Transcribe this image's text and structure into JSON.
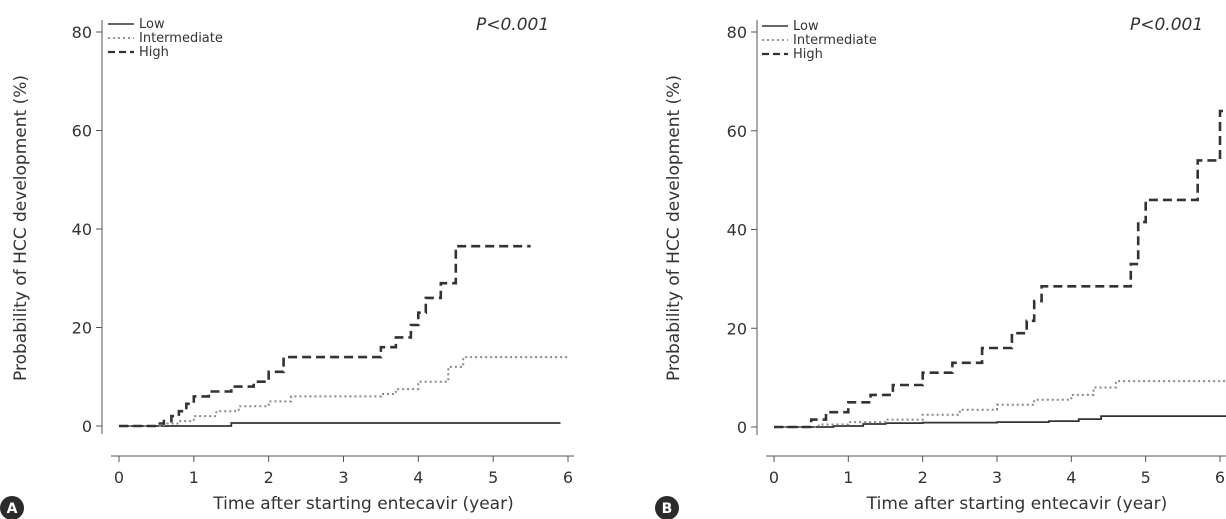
{
  "figure": {
    "panels": [
      "A",
      "B"
    ]
  },
  "chart_data": [
    {
      "type": "line",
      "panel_label": "A",
      "xlabel": "Time after starting entecavir (year)",
      "ylabel": "Probability of HCC development (%)",
      "xlim": [
        0,
        6
      ],
      "ylim": [
        0,
        80
      ],
      "xticks": [
        "0",
        "1",
        "2",
        "3",
        "4",
        "5",
        "6"
      ],
      "yticks": [
        "0",
        "20",
        "40",
        "60",
        "80"
      ],
      "annotation": "P<0.001",
      "legend": {
        "position": "top-left"
      },
      "series": [
        {
          "name": "Low",
          "style": "solid",
          "color": "#333333",
          "x": [
            0,
            1.5,
            5.9
          ],
          "y": [
            0,
            0.6,
            0.6
          ]
        },
        {
          "name": "Intermediate",
          "style": "dotted",
          "color": "#888888",
          "x": [
            0,
            0.6,
            0.8,
            1.0,
            1.3,
            1.6,
            2.0,
            2.3,
            3.5,
            3.7,
            4.0,
            4.4,
            4.6,
            6.0
          ],
          "y": [
            0,
            0.5,
            1.0,
            2.0,
            3.0,
            4.0,
            5.0,
            6.0,
            6.5,
            7.5,
            9.0,
            12.0,
            14.0,
            14.0
          ]
        },
        {
          "name": "High",
          "style": "dashed",
          "color": "#333333",
          "x": [
            0,
            0.5,
            0.6,
            0.7,
            0.8,
            0.9,
            1.0,
            1.2,
            1.5,
            1.8,
            2.0,
            2.2,
            3.2,
            3.5,
            3.7,
            3.9,
            4.0,
            4.1,
            4.3,
            4.5,
            5.5
          ],
          "y": [
            0,
            0.5,
            1.0,
            2.0,
            3.0,
            4.5,
            6.0,
            7.0,
            8.0,
            9.0,
            11.0,
            14.0,
            14.0,
            16.0,
            18.0,
            20.5,
            23.0,
            26.0,
            29.0,
            36.5,
            36.5
          ]
        }
      ]
    },
    {
      "type": "line",
      "panel_label": "B",
      "xlabel": "Time after starting entecavir (year)",
      "ylabel": "Probability of HCC development (%)",
      "xlim": [
        0,
        6
      ],
      "ylim": [
        0,
        80
      ],
      "xticks": [
        "0",
        "1",
        "2",
        "3",
        "4",
        "5",
        "6"
      ],
      "yticks": [
        "0",
        "20",
        "40",
        "60",
        "80"
      ],
      "annotation": "P<0.001",
      "legend": {
        "position": "top-left"
      },
      "series": [
        {
          "name": "Low",
          "style": "solid",
          "color": "#333333",
          "x": [
            0,
            0.8,
            1.2,
            1.5,
            2.0,
            3.0,
            3.7,
            4.1,
            4.4,
            6.2
          ],
          "y": [
            0,
            0.2,
            0.6,
            0.8,
            0.9,
            1.0,
            1.2,
            1.6,
            2.2,
            2.2
          ]
        },
        {
          "name": "Intermediate",
          "style": "dotted",
          "color": "#888888",
          "x": [
            0,
            0.6,
            1.0,
            1.5,
            2.0,
            2.5,
            3.0,
            3.5,
            4.0,
            4.3,
            4.6,
            6.2
          ],
          "y": [
            0,
            0.5,
            1.0,
            1.5,
            2.5,
            3.5,
            4.5,
            5.5,
            6.5,
            8.0,
            9.3,
            9.3
          ]
        },
        {
          "name": "High",
          "style": "dashed",
          "color": "#333333",
          "x": [
            0,
            0.5,
            0.7,
            1.0,
            1.3,
            1.6,
            2.0,
            2.4,
            2.8,
            3.2,
            3.4,
            3.5,
            3.6,
            4.6,
            4.8,
            4.9,
            5.0,
            5.4,
            5.7,
            6.0,
            6.2
          ],
          "y": [
            0,
            1.5,
            3.0,
            5.0,
            6.5,
            8.5,
            11.0,
            13.0,
            16.0,
            19.0,
            21.5,
            25.5,
            28.5,
            28.5,
            33.0,
            41.5,
            46.0,
            46.0,
            54.0,
            64.0,
            64.0
          ]
        }
      ]
    }
  ]
}
